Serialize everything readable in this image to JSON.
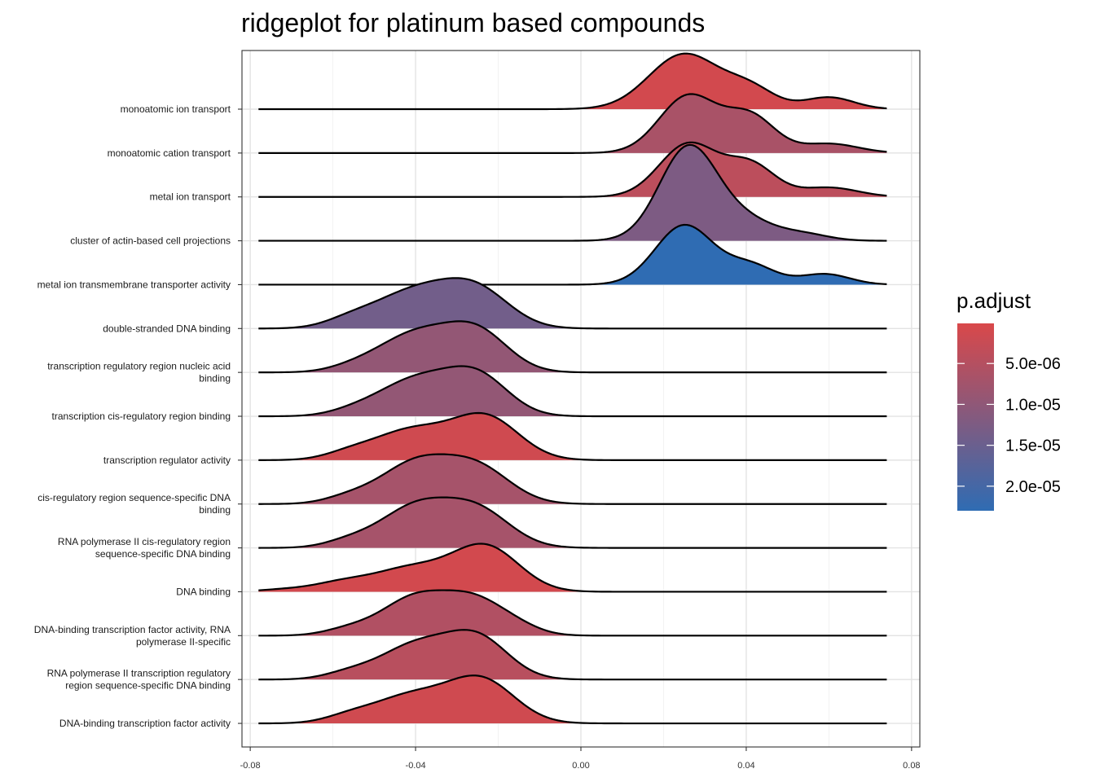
{
  "chart_data": {
    "type": "ridgeline",
    "title": "ridgeplot for platinum based compounds",
    "xlabel": "",
    "ylabel": "",
    "xlim": [
      -0.082,
      0.082
    ],
    "x_ticks": [
      "-0.08",
      "-0.04",
      "0.00",
      "0.04",
      "0.08"
    ],
    "x_tick_values": [
      -0.08,
      -0.04,
      0.0,
      0.04,
      0.08
    ],
    "grid": true,
    "density_domain": [
      -0.078,
      0.074
    ],
    "legend": {
      "title": "p.adjust",
      "position": "right",
      "range": [
        1e-07,
        2.3e-05
      ],
      "ticks": [
        "5.0e-06",
        "1.0e-05",
        "1.5e-05",
        "2.0e-05"
      ],
      "tick_values": [
        5e-06,
        1e-05,
        1.5e-05,
        2e-05
      ],
      "low_color": "#D9484A",
      "high_color": "#2F6CB3"
    },
    "series": [
      {
        "name": "monoatomic ion transport",
        "label_lines": [
          "monoatomic ion transport"
        ],
        "p_adjust": 1e-06,
        "peaks": [
          [
            0.025,
            0.0085,
            1.3
          ],
          [
            0.041,
            0.006,
            0.45
          ],
          [
            0.06,
            0.006,
            0.28
          ]
        ]
      },
      {
        "name": "monoatomic cation transport",
        "label_lines": [
          "monoatomic cation transport"
        ],
        "p_adjust": 6.5e-06,
        "peaks": [
          [
            0.026,
            0.007,
            1.35
          ],
          [
            0.041,
            0.006,
            0.85
          ],
          [
            0.06,
            0.007,
            0.22
          ]
        ]
      },
      {
        "name": "metal ion transport",
        "label_lines": [
          "metal ion transport"
        ],
        "p_adjust": 4e-06,
        "peaks": [
          [
            0.026,
            0.007,
            1.25
          ],
          [
            0.041,
            0.006,
            0.75
          ],
          [
            0.06,
            0.007,
            0.22
          ]
        ]
      },
      {
        "name": "cluster of actin-based cell projections",
        "label_lines": [
          "cluster of actin-based cell projections"
        ],
        "p_adjust": 1.25e-05,
        "peaks": [
          [
            0.026,
            0.007,
            2.2
          ],
          [
            0.04,
            0.007,
            0.45
          ],
          [
            0.054,
            0.006,
            0.15
          ]
        ]
      },
      {
        "name": "metal ion transmembrane transporter activity",
        "label_lines": [
          "metal ion transmembrane transporter activity"
        ],
        "p_adjust": 2.3e-05,
        "peaks": [
          [
            0.025,
            0.007,
            1.4
          ],
          [
            0.041,
            0.006,
            0.45
          ],
          [
            0.059,
            0.006,
            0.25
          ]
        ]
      },
      {
        "name": "double-stranded DNA binding",
        "label_lines": [
          "double-stranded DNA binding"
        ],
        "p_adjust": 1.4e-05,
        "peaks": [
          [
            -0.04,
            0.01,
            0.88
          ],
          [
            -0.025,
            0.008,
            0.8
          ],
          [
            -0.056,
            0.006,
            0.15
          ]
        ]
      },
      {
        "name": "transcription regulatory region nucleic acid binding",
        "label_lines": [
          "transcription regulatory region nucleic acid",
          "binding"
        ],
        "p_adjust": 9.5e-06,
        "peaks": [
          [
            -0.04,
            0.009,
            0.9
          ],
          [
            -0.025,
            0.0075,
            0.9
          ],
          [
            -0.055,
            0.006,
            0.1
          ]
        ]
      },
      {
        "name": "transcription cis-regulatory region binding",
        "label_lines": [
          "transcription cis-regulatory region binding"
        ],
        "p_adjust": 9.5e-06,
        "peaks": [
          [
            -0.04,
            0.009,
            0.85
          ],
          [
            -0.025,
            0.0075,
            0.9
          ],
          [
            -0.055,
            0.006,
            0.1
          ]
        ]
      },
      {
        "name": "transcription regulator activity",
        "label_lines": [
          "transcription regulator activity"
        ],
        "p_adjust": 1.5e-06,
        "peaks": [
          [
            -0.041,
            0.009,
            0.7
          ],
          [
            -0.023,
            0.008,
            1.0
          ],
          [
            -0.056,
            0.006,
            0.15
          ]
        ]
      },
      {
        "name": "cis-regulatory region sequence-specific DNA binding",
        "label_lines": [
          "cis-regulatory region sequence-specific DNA",
          "binding"
        ],
        "p_adjust": 7e-06,
        "peaks": [
          [
            -0.04,
            0.0085,
            0.95
          ],
          [
            -0.025,
            0.008,
            0.82
          ],
          [
            -0.056,
            0.006,
            0.15
          ]
        ]
      },
      {
        "name": "RNA polymerase II cis-regulatory region sequence-specific DNA binding",
        "label_lines": [
          "RNA polymerase II cis-regulatory region",
          "sequence-specific DNA binding"
        ],
        "p_adjust": 7e-06,
        "peaks": [
          [
            -0.04,
            0.0085,
            0.95
          ],
          [
            -0.025,
            0.008,
            0.85
          ],
          [
            -0.056,
            0.006,
            0.15
          ]
        ]
      },
      {
        "name": "DNA binding",
        "label_lines": [
          "DNA binding"
        ],
        "p_adjust": 1e-06,
        "peaks": [
          [
            -0.041,
            0.009,
            0.55
          ],
          [
            -0.023,
            0.008,
            1.05
          ],
          [
            -0.058,
            0.007,
            0.2
          ],
          [
            -0.072,
            0.006,
            0.05
          ]
        ]
      },
      {
        "name": "DNA-binding transcription factor activity, RNA polymerase II-specific",
        "label_lines": [
          "DNA-binding transcription factor activity, RNA",
          "polymerase II-specific"
        ],
        "p_adjust": 5.5e-06,
        "peaks": [
          [
            -0.04,
            0.008,
            0.9
          ],
          [
            -0.026,
            0.007,
            0.75
          ],
          [
            -0.016,
            0.006,
            0.2
          ],
          [
            -0.056,
            0.006,
            0.15
          ]
        ]
      },
      {
        "name": "RNA polymerase II transcription regulatory region sequence-specific DNA binding",
        "label_lines": [
          "RNA polymerase II transcription regulatory",
          "region sequence-specific DNA binding"
        ],
        "p_adjust": 4.5e-06,
        "peaks": [
          [
            -0.04,
            0.0085,
            0.8
          ],
          [
            -0.025,
            0.0075,
            0.95
          ],
          [
            -0.056,
            0.006,
            0.15
          ]
        ]
      },
      {
        "name": "DNA-binding transcription factor activity",
        "label_lines": [
          "DNA-binding transcription factor activity"
        ],
        "p_adjust": 1.5e-06,
        "peaks": [
          [
            -0.041,
            0.009,
            0.65
          ],
          [
            -0.024,
            0.008,
            1.0
          ],
          [
            -0.056,
            0.006,
            0.15
          ]
        ]
      }
    ]
  }
}
